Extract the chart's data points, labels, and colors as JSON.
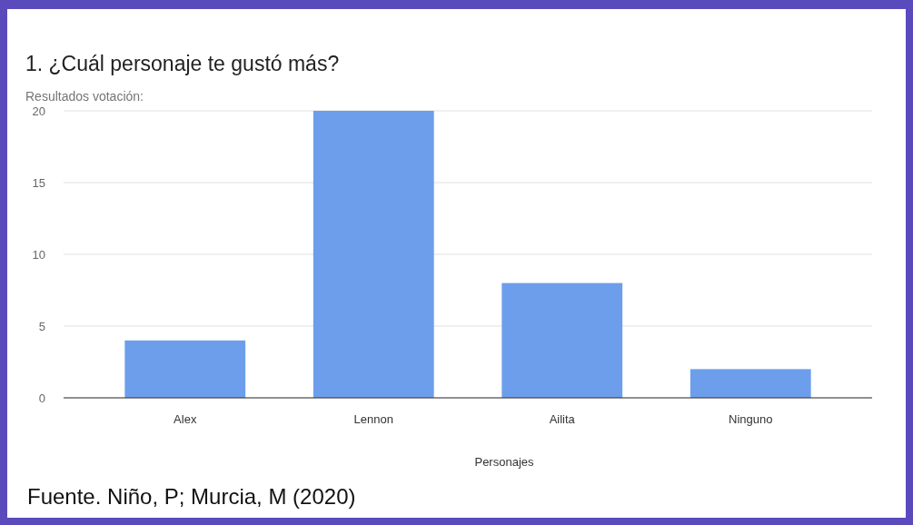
{
  "chart_data": {
    "type": "bar",
    "title": "1. ¿Cuál personaje te gustó más?",
    "subtitle": "Resultados votación:",
    "xlabel": "Personajes",
    "annotations": [
      "Fuente. Niño, P; Murcia, M (2020)"
    ],
    "categories": [
      "Alex",
      "Lennon",
      "Ailita",
      "Ninguno"
    ],
    "values": [
      4,
      20,
      8,
      2
    ],
    "color": "#6d9eeb",
    "ylim": [
      0,
      20
    ],
    "yticks": [
      0,
      5,
      10,
      15,
      20
    ],
    "grid": "y"
  }
}
